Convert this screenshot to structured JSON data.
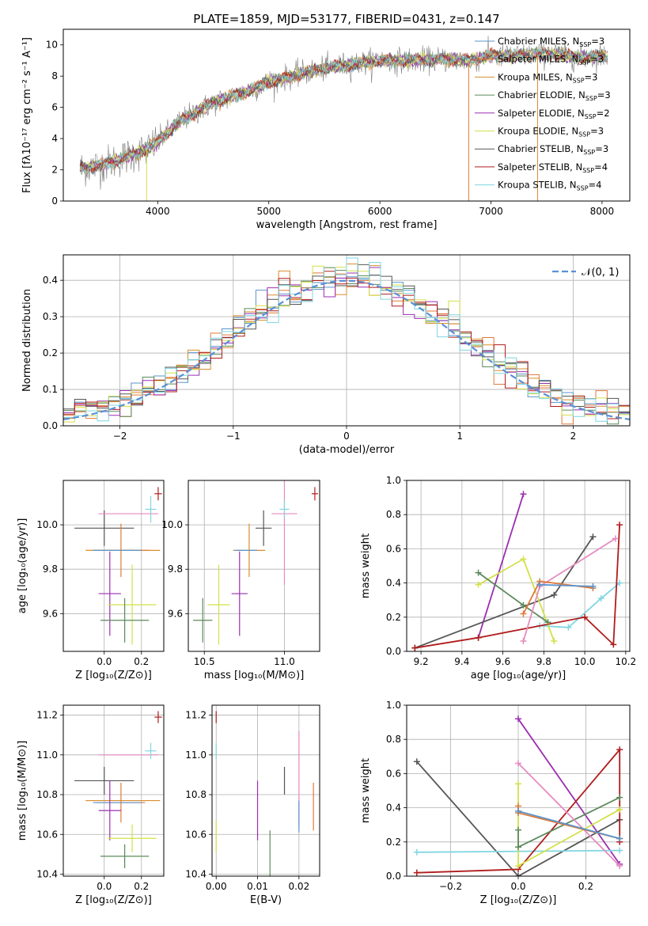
{
  "figure": {
    "title": "PLATE=1859, MJD=53177, FIBERID=0431, z=0.147"
  },
  "series_info": [
    {
      "name": "Chabrier MILES",
      "nssp": "3",
      "color": "#5b93c9"
    },
    {
      "name": "Salpeter MILES",
      "nssp": "3",
      "color": "#e07a3a"
    },
    {
      "name": "Kroupa MILES",
      "nssp": "3",
      "color": "#d88d2e"
    },
    {
      "name": "Chabrier ELODIE",
      "nssp": "3",
      "color": "#5c8a5c"
    },
    {
      "name": "Salpeter ELODIE",
      "nssp": "2",
      "color": "#9b2fb0"
    },
    {
      "name": "Kroupa ELODIE",
      "nssp": "3",
      "color": "#d3e04a"
    },
    {
      "name": "Chabrier STELIB",
      "nssp": "3",
      "color": "#555555"
    },
    {
      "name": "Salpeter STELIB",
      "nssp": "4",
      "color": "#b01c1c"
    },
    {
      "name": "Kroupa STELIB",
      "nssp": "4",
      "color": "#7fd6e0"
    }
  ],
  "chart_data": [
    {
      "id": "spectrum",
      "type": "line",
      "xlabel": "wavelength [Angstrom, rest frame]",
      "ylabel": "Flux [fλ10⁻¹⁷ erg cm⁻² s⁻¹ A⁻¹]",
      "xlim": [
        3150,
        8250
      ],
      "ylim": [
        0,
        11
      ],
      "xticks": [
        4000,
        5000,
        6000,
        7000,
        8000
      ],
      "yticks": [
        0,
        2,
        4,
        6,
        8,
        10
      ],
      "grid": false,
      "legend": "top-right",
      "continuum": {
        "x": [
          3300,
          3500,
          3700,
          3900,
          4000,
          4200,
          4500,
          4800,
          5000,
          5200,
          5500,
          5800,
          6000,
          6300,
          6600,
          6800,
          7000,
          7200,
          7400,
          7600,
          7800,
          8000
        ],
        "y": [
          2.1,
          2.3,
          2.8,
          3.3,
          3.8,
          5.1,
          6.3,
          7.0,
          7.6,
          8.0,
          8.5,
          8.8,
          9.0,
          9.0,
          9.1,
          9.0,
          9.3,
          9.3,
          9.4,
          9.4,
          9.2,
          9.3
        ]
      },
      "noise_amplitude": 0.9,
      "drops_to_zero": [
        3900,
        6800,
        7420
      ]
    },
    {
      "id": "residuals",
      "type": "step",
      "xlabel": "(data-model)/error",
      "ylabel": "Normed distribution",
      "xlim": [
        -2.5,
        2.5
      ],
      "ylim": [
        0,
        0.47
      ],
      "xticks": [
        -2,
        -1,
        0,
        1,
        2
      ],
      "yticks": [
        0.0,
        0.1,
        0.2,
        0.3,
        0.4
      ],
      "grid": true,
      "legend": "top-right",
      "reference_label": "𝒩(0, 1)",
      "reference_color": "#5b8fd6",
      "bin_width": 0.1
    },
    {
      "id": "age_vs_Z",
      "type": "errorbar",
      "xlabel": "Z [log₁₀(Z/Z⊙)]",
      "ylabel": "age  [log₁₀(age/yr)]",
      "xlim": [
        -0.22,
        0.32
      ],
      "ylim": [
        9.43,
        10.2
      ],
      "xticks": [
        0.0,
        0.2
      ],
      "yticks": [
        9.6,
        9.8,
        10.0
      ],
      "grid": true,
      "points": [
        {
          "x": 0.0,
          "y": 9.985,
          "xerr": 0.16,
          "yerr": 0.08,
          "series": 6
        },
        {
          "x": 0.13,
          "y": 10.05,
          "xerr": 0.16,
          "yerr": 0.0,
          "series": 8,
          "pink": true
        },
        {
          "x": 0.25,
          "y": 10.07,
          "xerr": 0.03,
          "yerr": 0.06,
          "series": 8
        },
        {
          "x": 0.29,
          "y": 10.14,
          "xerr": 0.02,
          "yerr": 0.03,
          "series": 7
        },
        {
          "x": 0.1,
          "y": 9.885,
          "xerr": 0.2,
          "yerr": 0.0,
          "series": 2
        },
        {
          "x": 0.09,
          "y": 9.885,
          "xerr": 0.15,
          "yerr": 0.12,
          "series": 1
        },
        {
          "x": 0.07,
          "y": 9.885,
          "xerr": 0.13,
          "yerr": 0.0,
          "series": 0
        },
        {
          "x": 0.03,
          "y": 9.69,
          "xerr": 0.06,
          "yerr": 0.19,
          "series": 4
        },
        {
          "x": 0.15,
          "y": 9.64,
          "xerr": 0.13,
          "yerr": 0.18,
          "series": 5
        },
        {
          "x": 0.11,
          "y": 9.57,
          "xerr": 0.13,
          "yerr": 0.1,
          "series": 3
        }
      ]
    },
    {
      "id": "age_vs_mass",
      "type": "errorbar",
      "xlabel": "mass [log₁₀(M/M⊙)]",
      "ylabel": "",
      "xlim": [
        10.4,
        11.22
      ],
      "ylim": [
        9.43,
        10.2
      ],
      "xticks": [
        10.5,
        11.0
      ],
      "yticks": [
        9.6,
        9.8,
        10.0
      ],
      "grid": true,
      "points": [
        {
          "x": 10.87,
          "y": 9.985,
          "xerr": 0.05,
          "yerr": 0.08,
          "series": 6
        },
        {
          "x": 11.0,
          "y": 10.05,
          "xerr": 0.08,
          "yerr": 0.32,
          "series": 8,
          "pink": true
        },
        {
          "x": 11.0,
          "y": 10.07,
          "xerr": 0.03,
          "yerr": 0.04,
          "series": 8
        },
        {
          "x": 11.19,
          "y": 10.14,
          "xerr": 0.02,
          "yerr": 0.03,
          "series": 7
        },
        {
          "x": 10.78,
          "y": 9.885,
          "xerr": 0.1,
          "yerr": 0.12,
          "series": 2
        },
        {
          "x": 10.76,
          "y": 9.885,
          "xerr": 0.07,
          "yerr": 0.0,
          "series": 0
        },
        {
          "x": 10.72,
          "y": 9.69,
          "xerr": 0.05,
          "yerr": 0.19,
          "series": 4
        },
        {
          "x": 10.59,
          "y": 9.64,
          "xerr": 0.07,
          "yerr": 0.18,
          "series": 5
        },
        {
          "x": 10.49,
          "y": 9.57,
          "xerr": 0.06,
          "yerr": 0.1,
          "series": 3
        }
      ]
    },
    {
      "id": "weight_vs_age",
      "type": "line",
      "xlabel": "age  [log₁₀(age/yr)]",
      "ylabel": "mass weight",
      "xlim": [
        9.13,
        10.22
      ],
      "ylim": [
        0,
        1.0
      ],
      "xticks": [
        9.2,
        9.4,
        9.6,
        9.8,
        10.0,
        10.2
      ],
      "yticks": [
        0.0,
        0.2,
        0.4,
        0.6,
        0.8,
        1.0
      ],
      "grid": true,
      "series": [
        {
          "series": 4,
          "x": [
            9.48,
            9.7
          ],
          "y": [
            0.08,
            0.92
          ]
        },
        {
          "series": 6,
          "x": [
            9.17,
            9.85,
            10.04
          ],
          "y": [
            0.02,
            0.33,
            0.67
          ]
        },
        {
          "series": 8,
          "x": [
            9.78,
            9.92,
            10.08,
            10.17
          ],
          "y": [
            0.15,
            0.14,
            0.31,
            0.4
          ]
        },
        {
          "series": 7,
          "x": [
            9.17,
            9.48,
            10.0,
            10.14,
            10.17
          ],
          "y": [
            0.02,
            0.08,
            0.2,
            0.04,
            0.74
          ]
        },
        {
          "series": 5,
          "x": [
            9.48,
            9.7,
            9.85
          ],
          "y": [
            0.39,
            0.54,
            0.06
          ]
        },
        {
          "series": 3,
          "x": [
            9.48,
            9.7,
            9.82
          ],
          "y": [
            0.46,
            0.27,
            0.17
          ]
        },
        {
          "series": 9,
          "x": [
            9.7,
            9.78,
            10.15
          ],
          "y": [
            0.06,
            0.38,
            0.66
          ],
          "pink": true
        },
        {
          "series": 1,
          "x": [
            9.7,
            9.78,
            10.04
          ],
          "y": [
            0.22,
            0.41,
            0.37
          ]
        },
        {
          "series": 0,
          "x": [
            9.78,
            10.04
          ],
          "y": [
            0.39,
            0.38
          ]
        }
      ]
    },
    {
      "id": "mass_vs_Z",
      "type": "errorbar",
      "xlabel": "Z [log₁₀(Z/Z⊙)]",
      "ylabel": "mass [log₁₀(M/M⊙)]",
      "xlim": [
        -0.22,
        0.32
      ],
      "ylim": [
        10.39,
        11.25
      ],
      "xticks": [
        0.0,
        0.2
      ],
      "yticks": [
        10.4,
        10.6,
        10.8,
        11.0,
        11.2
      ],
      "grid": true,
      "points": [
        {
          "x": 0.0,
          "y": 10.87,
          "xerr": 0.16,
          "yerr": 0.07,
          "series": 6
        },
        {
          "x": 0.13,
          "y": 11.0,
          "xerr": 0.16,
          "yerr": 0.0,
          "series": 8,
          "pink": true
        },
        {
          "x": 0.25,
          "y": 11.02,
          "xerr": 0.03,
          "yerr": 0.04,
          "series": 8
        },
        {
          "x": 0.29,
          "y": 11.19,
          "xerr": 0.02,
          "yerr": 0.03,
          "series": 7
        },
        {
          "x": 0.1,
          "y": 10.77,
          "xerr": 0.2,
          "yerr": 0.0,
          "series": 2
        },
        {
          "x": 0.09,
          "y": 10.76,
          "xerr": 0.13,
          "yerr": 0.1,
          "series": 1
        },
        {
          "x": 0.07,
          "y": 10.76,
          "xerr": 0.13,
          "yerr": 0.0,
          "series": 0
        },
        {
          "x": 0.03,
          "y": 10.72,
          "xerr": 0.06,
          "yerr": 0.15,
          "series": 4
        },
        {
          "x": 0.15,
          "y": 10.58,
          "xerr": 0.13,
          "yerr": 0.07,
          "series": 5
        },
        {
          "x": 0.11,
          "y": 10.49,
          "xerr": 0.13,
          "yerr": 0.06,
          "series": 3
        }
      ]
    },
    {
      "id": "mass_vs_ebv",
      "type": "errorbar",
      "xlabel": "E(B-V)",
      "ylabel": "",
      "xlim": [
        -0.001,
        0.025
      ],
      "ylim": [
        10.39,
        11.25
      ],
      "xticks": [
        0.0,
        0.01,
        0.02
      ],
      "yticks": [
        10.4,
        10.6,
        10.8,
        11.0,
        11.2
      ],
      "grid": true,
      "points": [
        {
          "x": 0.0,
          "y": 11.19,
          "xerr": 0.0,
          "yerr": 0.03,
          "series": 7
        },
        {
          "x": 0.0,
          "y": 11.02,
          "xerr": 0.0,
          "yerr": 0.04,
          "series": 8
        },
        {
          "x": 0.0,
          "y": 10.59,
          "xerr": 0.0,
          "yerr": 0.08,
          "series": 5
        },
        {
          "x": 0.01,
          "y": 10.72,
          "xerr": 0.0,
          "yerr": 0.15,
          "series": 4
        },
        {
          "x": 0.013,
          "y": 10.49,
          "xerr": 0.0,
          "yerr": 0.13,
          "series": 3
        },
        {
          "x": 0.0165,
          "y": 10.87,
          "xerr": 0.0,
          "yerr": 0.07,
          "series": 6
        },
        {
          "x": 0.02,
          "y": 10.88,
          "xerr": 0.0,
          "yerr": 0.24,
          "series": 8,
          "pink": true
        },
        {
          "x": 0.02,
          "y": 10.69,
          "xerr": 0.0,
          "yerr": 0.08,
          "series": 0
        },
        {
          "x": 0.0235,
          "y": 10.74,
          "xerr": 0.0,
          "yerr": 0.12,
          "series": 1
        }
      ]
    },
    {
      "id": "weight_vs_Z",
      "type": "line",
      "xlabel": "Z [log₁₀(Z/Z⊙)]",
      "ylabel": "mass weight",
      "xlim": [
        -0.33,
        0.33
      ],
      "ylim": [
        0,
        1.0
      ],
      "xticks": [
        -0.2,
        0.0,
        0.2
      ],
      "yticks": [
        0.0,
        0.2,
        0.4,
        0.6,
        0.8,
        1.0
      ],
      "grid": true,
      "series": [
        {
          "series": 4,
          "x": [
            0.0,
            0.3
          ],
          "y": [
            0.92,
            0.07
          ]
        },
        {
          "series": 6,
          "x": [
            -0.3,
            0.0,
            0.3
          ],
          "y": [
            0.67,
            0.0,
            0.33
          ]
        },
        {
          "series": 8,
          "x": [
            -0.3,
            0.3
          ],
          "y": [
            0.14,
            0.15
          ]
        },
        {
          "series": 7,
          "x": [
            -0.3,
            0.0,
            0.3,
            0.3
          ],
          "y": [
            0.02,
            0.04,
            0.74,
            0.2
          ]
        },
        {
          "series": 5,
          "x": [
            0.0,
            0.0,
            0.3
          ],
          "y": [
            0.54,
            0.06,
            0.39
          ]
        },
        {
          "series": 3,
          "x": [
            0.0,
            0.0,
            0.3
          ],
          "y": [
            0.27,
            0.17,
            0.46
          ]
        },
        {
          "series": 9,
          "x": [
            0.0,
            0.3
          ],
          "y": [
            0.66,
            0.06
          ],
          "pink": true
        },
        {
          "series": 1,
          "x": [
            0.0,
            0.0,
            0.3
          ],
          "y": [
            0.41,
            0.37,
            0.22
          ]
        },
        {
          "series": 0,
          "x": [
            0.0,
            0.3
          ],
          "y": [
            0.38,
            0.22
          ]
        }
      ]
    }
  ]
}
